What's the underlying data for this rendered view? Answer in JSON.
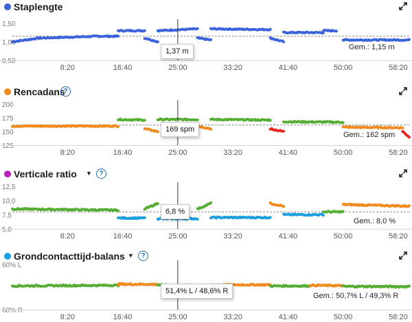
{
  "x_ticks": [
    "8:20",
    "16:40",
    "25:00",
    "33:20",
    "41:40",
    "50:00",
    "58:20"
  ],
  "colors": {
    "blue": "#3a63dc",
    "orange": "#f28a1e",
    "green": "#56ad34",
    "red": "#e8261f",
    "cyan": "#1c9fe0",
    "purple": "#b71fb7",
    "cursor": "#333333"
  },
  "panels": [
    {
      "id": "staplengte",
      "title": "Staplengte",
      "dot_color": "#3a63dc",
      "has_info": false,
      "has_dropdown": false,
      "y_labels": [
        "1,50",
        "1,00",
        "0,50"
      ],
      "tooltip": "1,37 m",
      "average": "Gem.: 1,15 m",
      "chart_data": {
        "type": "scatter",
        "ylim": [
          0.5,
          1.5
        ],
        "avg": 1.15,
        "segments": [
          {
            "x": [
              0,
              4
            ],
            "y": [
              1.0,
              1.1
            ],
            "color": "blue"
          },
          {
            "x": [
              4,
              13
            ],
            "y": [
              1.1,
              1.15
            ],
            "color": "blue"
          },
          {
            "x": [
              13,
              16
            ],
            "y": [
              1.15,
              1.15
            ],
            "color": "blue"
          },
          {
            "x": [
              16,
              20
            ],
            "y": [
              1.3,
              1.3
            ],
            "color": "blue"
          },
          {
            "x": [
              20,
              22
            ],
            "y": [
              1.1,
              1.0
            ],
            "color": "blue"
          },
          {
            "x": [
              22,
              28
            ],
            "y": [
              1.3,
              1.35
            ],
            "color": "blue"
          },
          {
            "x": [
              28,
              30
            ],
            "y": [
              1.1,
              1.05
            ],
            "color": "blue"
          },
          {
            "x": [
              30,
              39
            ],
            "y": [
              1.35,
              1.33
            ],
            "color": "blue"
          },
          {
            "x": [
              39,
              41
            ],
            "y": [
              1.1,
              1.0
            ],
            "color": "blue"
          },
          {
            "x": [
              41,
              47
            ],
            "y": [
              1.25,
              1.25
            ],
            "color": "blue"
          },
          {
            "x": [
              47,
              49
            ],
            "y": [
              1.3,
              1.3
            ],
            "color": "blue"
          },
          {
            "x": [
              50,
              60
            ],
            "y": [
              1.05,
              1.05
            ],
            "color": "blue"
          }
        ]
      }
    },
    {
      "id": "rencadans",
      "title": "Rencadans",
      "dot_color": "#f28a1e",
      "has_info": true,
      "has_dropdown": false,
      "y_labels": [
        "200",
        "175",
        "150",
        "125"
      ],
      "tooltip": "169 spm",
      "average": "Gem.: 162 spm",
      "chart_data": {
        "type": "scatter",
        "ylim": [
          125,
          200
        ],
        "avg": 162,
        "segments": [
          {
            "x": [
              0,
              16
            ],
            "y": [
              160,
              160
            ],
            "color": "orange"
          },
          {
            "x": [
              16,
              20
            ],
            "y": [
              172,
              171
            ],
            "color": "green"
          },
          {
            "x": [
              20,
              22
            ],
            "y": [
              155,
              150
            ],
            "color": "orange"
          },
          {
            "x": [
              22,
              28
            ],
            "y": [
              172,
              172
            ],
            "color": "green"
          },
          {
            "x": [
              28,
              30
            ],
            "y": [
              160,
              155
            ],
            "color": "orange"
          },
          {
            "x": [
              30,
              39
            ],
            "y": [
              172,
              171
            ],
            "color": "green"
          },
          {
            "x": [
              39,
              41
            ],
            "y": [
              155,
              150
            ],
            "color": "red"
          },
          {
            "x": [
              41,
              50
            ],
            "y": [
              168,
              167
            ],
            "color": "green"
          },
          {
            "x": [
              50,
              59
            ],
            "y": [
              158,
              157
            ],
            "color": "orange"
          },
          {
            "x": [
              59,
              60
            ],
            "y": [
              150,
              140
            ],
            "color": "red"
          }
        ]
      }
    },
    {
      "id": "verticale-ratio",
      "title": "Verticale ratio",
      "dot_color": "#b71fb7",
      "has_info": true,
      "has_dropdown": true,
      "y_labels": [
        "12,5",
        "10,0",
        "7,5",
        "5,0"
      ],
      "tooltip": "6,8 %",
      "average": "Gem.: 8,0 %",
      "chart_data": {
        "type": "scatter",
        "ylim": [
          5,
          12.5
        ],
        "avg": 8.0,
        "segments": [
          {
            "x": [
              0,
              16
            ],
            "y": [
              8.5,
              8.3
            ],
            "color": "green"
          },
          {
            "x": [
              16,
              20
            ],
            "y": [
              6.9,
              6.9
            ],
            "color": "cyan"
          },
          {
            "x": [
              20,
              22
            ],
            "y": [
              8.5,
              9.5
            ],
            "color": "green"
          },
          {
            "x": [
              22,
              28
            ],
            "y": [
              6.8,
              6.8
            ],
            "color": "cyan"
          },
          {
            "x": [
              28,
              30
            ],
            "y": [
              8.5,
              9.5
            ],
            "color": "green"
          },
          {
            "x": [
              30,
              39
            ],
            "y": [
              7.0,
              7.0
            ],
            "color": "cyan"
          },
          {
            "x": [
              39,
              41
            ],
            "y": [
              9.5,
              9.0
            ],
            "color": "orange"
          },
          {
            "x": [
              41,
              47
            ],
            "y": [
              7.5,
              7.5
            ],
            "color": "cyan"
          },
          {
            "x": [
              47,
              50
            ],
            "y": [
              8.0,
              8.0
            ],
            "color": "green"
          },
          {
            "x": [
              50,
              60
            ],
            "y": [
              9.3,
              9.0
            ],
            "color": "orange"
          }
        ]
      }
    },
    {
      "id": "grondcontacttijd-balans",
      "title": "Grondcontacttijd-balans",
      "dot_color": "#1c9fe0",
      "has_info": true,
      "has_dropdown": true,
      "y_labels": [
        "60% L",
        "60% R"
      ],
      "tooltip": "51,4% L / 48,6% R",
      "average": "Gem.: 50,7% L / 49,3% R",
      "chart_data": {
        "type": "scatter",
        "ylim": [
          -10,
          10
        ],
        "avg": 0.7,
        "segments": [
          {
            "x": [
              0,
              16
            ],
            "y": [
              0.5,
              0.8
            ],
            "color": "green"
          },
          {
            "x": [
              16,
              22
            ],
            "y": [
              1.3,
              1.2
            ],
            "color": "orange"
          },
          {
            "x": [
              22,
              30
            ],
            "y": [
              0.9,
              0.7
            ],
            "color": "green"
          },
          {
            "x": [
              30,
              39
            ],
            "y": [
              1.0,
              1.0
            ],
            "color": "orange"
          },
          {
            "x": [
              39,
              45
            ],
            "y": [
              0.5,
              0.5
            ],
            "color": "green"
          },
          {
            "x": [
              45,
              50
            ],
            "y": [
              0.8,
              0.6
            ],
            "color": "orange"
          },
          {
            "x": [
              50,
              60
            ],
            "y": [
              0.3,
              0.2
            ],
            "color": "green"
          }
        ]
      }
    }
  ]
}
